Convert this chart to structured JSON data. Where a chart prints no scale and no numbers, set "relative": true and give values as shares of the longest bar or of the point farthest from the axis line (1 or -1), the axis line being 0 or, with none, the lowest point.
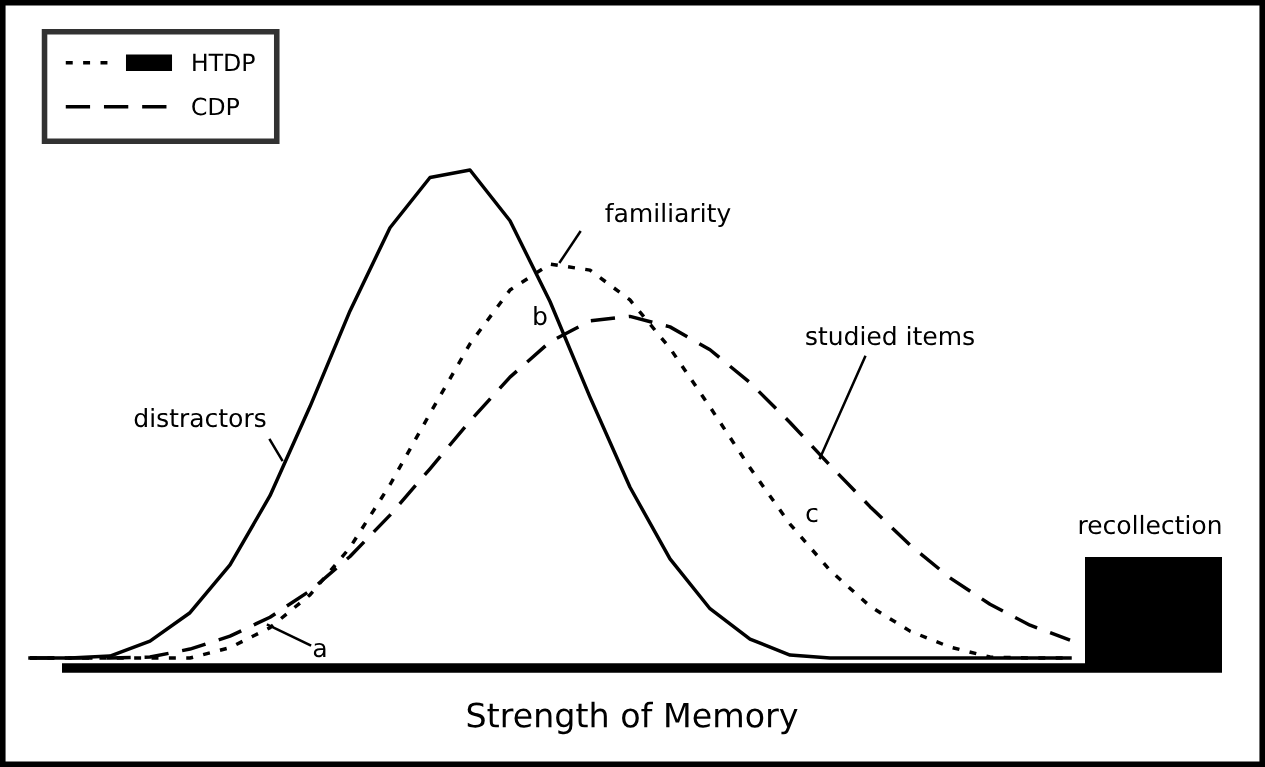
{
  "chart_data": {
    "type": "line",
    "relative": true,
    "xlabel": "Strength of Memory",
    "legend": "top left",
    "categories": [
      null,
      null,
      null,
      null,
      null,
      null,
      null,
      null,
      null,
      null,
      null,
      null,
      null,
      null,
      null,
      null,
      null,
      null,
      null,
      null,
      null,
      null,
      null,
      null,
      null,
      null,
      null
    ],
    "series": [
      {
        "line_style": "solid",
        "color": "#000000",
        "values": [
          0.02,
          0.02,
          0.024,
          0.054,
          0.111,
          0.207,
          0.346,
          0.525,
          0.717,
          0.884,
          0.985,
          1,
          0.898,
          0.736,
          0.544,
          0.363,
          0.219,
          0.119,
          0.058,
          0.026,
          0.02,
          0.02,
          0.02,
          0.02,
          0.02,
          0.02,
          0.02
        ]
      },
      {
        "name": "HTDP",
        "line_style": "dotted",
        "color": "#000000",
        "values": [
          0.02,
          0.02,
          0.02,
          0.02,
          0.02,
          0.041,
          0.081,
          0.147,
          0.242,
          0.368,
          0.511,
          0.651,
          0.759,
          0.811,
          0.799,
          0.739,
          0.642,
          0.524,
          0.402,
          0.289,
          0.196,
          0.124,
          0.074,
          0.042,
          0.022,
          0.02,
          0.02
        ]
      },
      {
        "name": "CDP",
        "line_style": "dashed",
        "color": "#000000",
        "values": [
          0.02,
          0.02,
          0.02,
          0.022,
          0.038,
          0.064,
          0.102,
          0.155,
          0.224,
          0.307,
          0.4,
          0.496,
          0.584,
          0.655,
          0.697,
          0.706,
          0.685,
          0.639,
          0.573,
          0.493,
          0.407,
          0.324,
          0.247,
          0.181,
          0.128,
          0.086,
          0.056
        ]
      }
    ],
    "annotations": [
      "familiarity",
      "b",
      "studied items",
      "distractors",
      "c",
      "a",
      "recollection"
    ]
  }
}
